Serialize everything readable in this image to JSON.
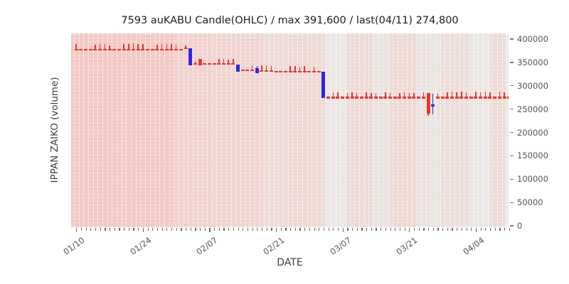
{
  "title": "7593 auKABU Candle(OHLC) / max 391,600 / last(04/11) 274,800",
  "axes": {
    "x_label": "DATE",
    "y_label": "IPPAN ZAIKO (volume)",
    "y_ticks": [
      {
        "value": 0,
        "label": "0"
      },
      {
        "value": 50000,
        "label": "50000"
      },
      {
        "value": 100000,
        "label": "100000"
      },
      {
        "value": 150000,
        "label": "150000"
      },
      {
        "value": 200000,
        "label": "200000"
      },
      {
        "value": 250000,
        "label": "250000"
      },
      {
        "value": 300000,
        "label": "300000"
      },
      {
        "value": 350000,
        "label": "350000"
      },
      {
        "value": 400000,
        "label": "400000"
      }
    ],
    "x_major_ticks": [
      "01/10",
      "01/24",
      "02/07",
      "02/21",
      "03/07",
      "03/21",
      "04/04"
    ]
  },
  "colors": {
    "up_candle": "#f2332a",
    "down_candle": "#2d28e2",
    "grid_line": "#ffffff",
    "tick_text": "#555555",
    "title_text": "#1c1c1c"
  },
  "chart_data": {
    "type": "candlestick-ohlc",
    "title": "7593 auKABU Candle(OHLC) / max 391,600 / last(04/11) 274,800",
    "xlabel": "DATE",
    "ylabel": "IPPAN ZAIKO (volume)",
    "ylim": [
      0,
      412000
    ],
    "max": 391600,
    "last": 274800,
    "last_date": "04/11",
    "legend": "none",
    "grid": "vertical-daily-dashed-white",
    "dates": [
      "01/10",
      "01/11",
      "01/12",
      "01/13",
      "01/14",
      "01/15",
      "01/16",
      "01/17",
      "01/18",
      "01/19",
      "01/20",
      "01/21",
      "01/22",
      "01/23",
      "01/24",
      "01/25",
      "01/26",
      "01/27",
      "01/28",
      "01/29",
      "01/30",
      "01/31",
      "02/01",
      "02/02",
      "02/03",
      "02/04",
      "02/05",
      "02/06",
      "02/07",
      "02/08",
      "02/09",
      "02/10",
      "02/11",
      "02/12",
      "02/13",
      "02/14",
      "02/15",
      "02/16",
      "02/17",
      "02/18",
      "02/19",
      "02/20",
      "02/21",
      "02/22",
      "02/23",
      "02/24",
      "02/25",
      "02/26",
      "02/27",
      "02/28",
      "03/01",
      "03/02",
      "03/03",
      "03/04",
      "03/05",
      "03/06",
      "03/07",
      "03/08",
      "03/09",
      "03/10",
      "03/11",
      "03/12",
      "03/13",
      "03/14",
      "03/15",
      "03/16",
      "03/17",
      "03/18",
      "03/19",
      "03/20",
      "03/21",
      "03/22",
      "03/23",
      "03/24",
      "03/25",
      "03/26",
      "03/27",
      "03/28",
      "03/29",
      "03/30",
      "03/31",
      "04/01",
      "04/02",
      "04/03",
      "04/04",
      "04/05",
      "04/06",
      "04/07",
      "04/08",
      "04/09",
      "04/10",
      "04/11"
    ],
    "ohlc": [
      [
        376800,
        388600,
        376800,
        376800
      ],
      [
        376800,
        376800,
        376800,
        376800
      ],
      [
        376800,
        376800,
        376800,
        376800
      ],
      [
        376800,
        376800,
        376800,
        376800
      ],
      [
        376800,
        387400,
        376800,
        376800
      ],
      [
        376800,
        388600,
        376800,
        376800
      ],
      [
        376800,
        388600,
        376800,
        376800
      ],
      [
        376800,
        387000,
        376800,
        376800
      ],
      [
        376800,
        376800,
        376800,
        376800
      ],
      [
        376800,
        376800,
        376800,
        376800
      ],
      [
        376800,
        388600,
        376800,
        376800
      ],
      [
        376800,
        389000,
        376800,
        376800
      ],
      [
        376800,
        391600,
        376800,
        376800
      ],
      [
        376800,
        389000,
        376800,
        376800
      ],
      [
        376800,
        388600,
        376800,
        376800
      ],
      [
        376800,
        376800,
        376800,
        376800
      ],
      [
        376800,
        376800,
        376800,
        376800
      ],
      [
        376800,
        387400,
        376800,
        376800
      ],
      [
        376800,
        388600,
        376800,
        376800
      ],
      [
        376800,
        389000,
        376800,
        376800
      ],
      [
        376800,
        388600,
        376800,
        376800
      ],
      [
        376800,
        387400,
        376800,
        376800
      ],
      [
        376800,
        376800,
        376800,
        376800
      ],
      [
        380300,
        386400,
        380300,
        380300
      ],
      [
        380300,
        380300,
        344000,
        344000
      ],
      [
        347000,
        352600,
        347000,
        347000
      ],
      [
        343600,
        357600,
        343600,
        357600
      ],
      [
        347000,
        347000,
        347000,
        347000
      ],
      [
        347000,
        347000,
        347000,
        347000
      ],
      [
        347000,
        347000,
        347000,
        347000
      ],
      [
        347000,
        357600,
        347000,
        347000
      ],
      [
        347000,
        357600,
        347000,
        347000
      ],
      [
        347000,
        356000,
        347000,
        347000
      ],
      [
        347000,
        357600,
        347000,
        347000
      ],
      [
        345500,
        345500,
        330300,
        330300
      ],
      [
        333000,
        333000,
        333000,
        333000
      ],
      [
        333000,
        333000,
        333000,
        333000
      ],
      [
        333000,
        343900,
        333000,
        333000
      ],
      [
        337000,
        342400,
        326800,
        326800
      ],
      [
        331800,
        344000,
        331800,
        331800
      ],
      [
        331800,
        344000,
        331800,
        331800
      ],
      [
        331800,
        342400,
        331800,
        331800
      ],
      [
        330300,
        330300,
        330300,
        330300
      ],
      [
        330300,
        330300,
        330300,
        330300
      ],
      [
        330300,
        330300,
        330300,
        330300
      ],
      [
        330300,
        341800,
        330300,
        330300
      ],
      [
        330300,
        341800,
        330300,
        330300
      ],
      [
        330300,
        340300,
        330300,
        330300
      ],
      [
        330300,
        341800,
        330300,
        330300
      ],
      [
        330300,
        330300,
        330300,
        330300
      ],
      [
        330300,
        340300,
        330300,
        330300
      ],
      [
        330300,
        330300,
        330300,
        330300
      ],
      [
        329300,
        329300,
        273700,
        273700
      ],
      [
        274800,
        274800,
        274800,
        274800
      ],
      [
        274800,
        286400,
        274800,
        274800
      ],
      [
        274800,
        286400,
        274800,
        274800
      ],
      [
        274800,
        274800,
        274800,
        274800
      ],
      [
        274800,
        285000,
        274800,
        274800
      ],
      [
        274800,
        286400,
        274800,
        274800
      ],
      [
        274800,
        285000,
        274800,
        274800
      ],
      [
        274800,
        274800,
        274800,
        274800
      ],
      [
        274800,
        286400,
        274800,
        274800
      ],
      [
        274800,
        285000,
        274800,
        274800
      ],
      [
        274800,
        284000,
        274800,
        274800
      ],
      [
        274800,
        274800,
        274800,
        274800
      ],
      [
        274800,
        286400,
        274800,
        274800
      ],
      [
        274800,
        285000,
        274800,
        274800
      ],
      [
        274800,
        274800,
        274800,
        274800
      ],
      [
        274800,
        285000,
        274800,
        274800
      ],
      [
        274800,
        286400,
        274800,
        274800
      ],
      [
        274800,
        285000,
        274800,
        274800
      ],
      [
        274800,
        284000,
        274800,
        274800
      ],
      [
        274800,
        274800,
        274800,
        274800
      ],
      [
        274800,
        286400,
        274800,
        274800
      ],
      [
        240000,
        284800,
        236400,
        284800
      ],
      [
        259500,
        282800,
        238300,
        258000
      ],
      [
        274800,
        283400,
        274800,
        274800
      ],
      [
        274800,
        274800,
        274800,
        274800
      ],
      [
        274800,
        286400,
        274800,
        274800
      ],
      [
        274800,
        288000,
        274800,
        274800
      ],
      [
        274800,
        286400,
        274800,
        274800
      ],
      [
        274800,
        288000,
        274800,
        274800
      ],
      [
        274800,
        286400,
        274800,
        274800
      ],
      [
        274800,
        274800,
        274800,
        274800
      ],
      [
        274800,
        288000,
        274800,
        274800
      ],
      [
        274800,
        286400,
        274800,
        274800
      ],
      [
        274800,
        288000,
        274800,
        274800
      ],
      [
        274800,
        286400,
        274800,
        274800
      ],
      [
        274800,
        274800,
        274800,
        274800
      ],
      [
        274800,
        288000,
        274800,
        274800
      ],
      [
        274800,
        286400,
        274800,
        274800
      ],
      [
        274800,
        285000,
        274800,
        274800
      ]
    ]
  }
}
